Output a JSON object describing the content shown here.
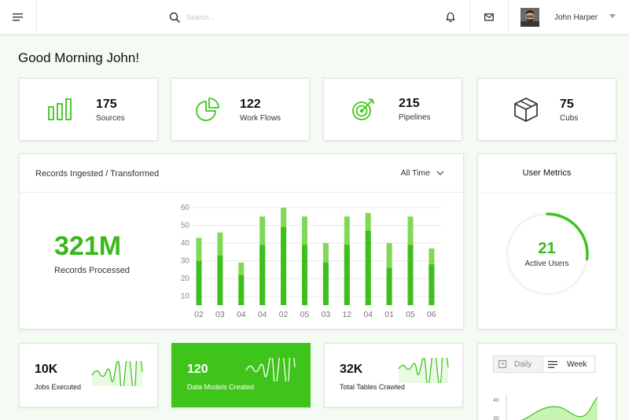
{
  "header": {
    "search_placeholder": "Search...",
    "user_name": "John Harper"
  },
  "greeting": "Good Morning John!",
  "stats": [
    {
      "icon": "bar-chart-icon",
      "value": "175",
      "label": "Sources"
    },
    {
      "icon": "pie-chart-icon",
      "value": "122",
      "label": "Work Flows"
    },
    {
      "icon": "target-icon",
      "value": "215",
      "label": "Pipelines"
    },
    {
      "icon": "cube-icon",
      "value": "75",
      "label": "Cubs"
    }
  ],
  "records_card": {
    "title": "Records Ingested / Transformed",
    "filter": "All Time",
    "big_value": "321M",
    "big_label": "Records Processed"
  },
  "chart_data": {
    "type": "bar",
    "categories": [
      "02",
      "03",
      "04",
      "04",
      "02",
      "05",
      "03",
      "12",
      "04",
      "01",
      "05",
      "06"
    ],
    "series": [
      {
        "values": [
          30,
          33,
          22,
          39,
          49,
          39,
          29,
          39,
          47,
          26,
          39,
          28
        ]
      },
      {
        "values": [
          43,
          46,
          29,
          55,
          60,
          55,
          40,
          55,
          57,
          40,
          55,
          37
        ]
      }
    ],
    "y_ticks": [
      "60",
      "50",
      "40",
      "30",
      "20",
      "10"
    ],
    "ylim": [
      5,
      60
    ],
    "grid": true,
    "colors": [
      "#3fbf1d",
      "#7fd957"
    ]
  },
  "user_metrics": {
    "title": "User Metrics",
    "value": "21",
    "label": "Active Users",
    "progress": 0.27
  },
  "mini_cards": [
    {
      "value": "10K",
      "label": "Jobs Executed",
      "active": false
    },
    {
      "value": "120",
      "label": "Data Models Created",
      "active": true
    },
    {
      "value": "32K",
      "label": "Total Tables Crawled",
      "active": false
    }
  ],
  "period_toggle": {
    "daily_label": "Daily",
    "week_label": "Week"
  },
  "bottom_chart": {
    "y_ticks": [
      "40",
      "30"
    ]
  },
  "colors": {
    "accent": "#3fc41c",
    "accent_light": "#7fd957",
    "background": "#f4fbf2"
  }
}
